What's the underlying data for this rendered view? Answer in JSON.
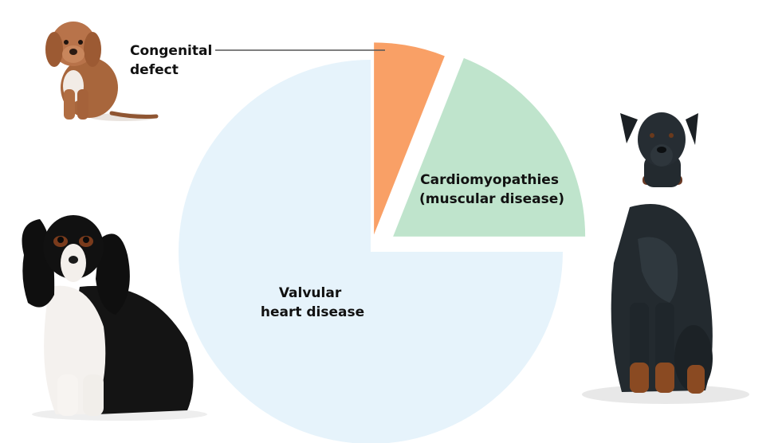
{
  "chart_data": {
    "type": "pie",
    "categories": [
      "Congenital defect",
      "Cardiomyopathies (muscular disease)",
      "Valvular heart disease"
    ],
    "values": [
      6,
      19,
      75
    ],
    "slices": [
      {
        "label_lines": [
          "Congenital",
          "defect"
        ],
        "value": 6,
        "color": "#f9a066"
      },
      {
        "label_lines": [
          "Cardiomyopathies",
          "(muscular disease)"
        ],
        "value": 19,
        "color": "#bfe4cc"
      },
      {
        "label_lines": [
          "Valvular",
          "heart disease"
        ],
        "value": 75,
        "color": "#e6f3fb"
      }
    ],
    "title": "",
    "legend": "none"
  },
  "images": {
    "left_top": "cavapoo-puppy",
    "left_bottom": "cavalier-king-charles-spaniel",
    "right": "doberman-pinscher"
  },
  "colors": {
    "congenital": "#f9a066",
    "cardiomyopathy": "#bfe4cc",
    "valvular": "#e6f3fb",
    "callout_line": "#555555"
  }
}
